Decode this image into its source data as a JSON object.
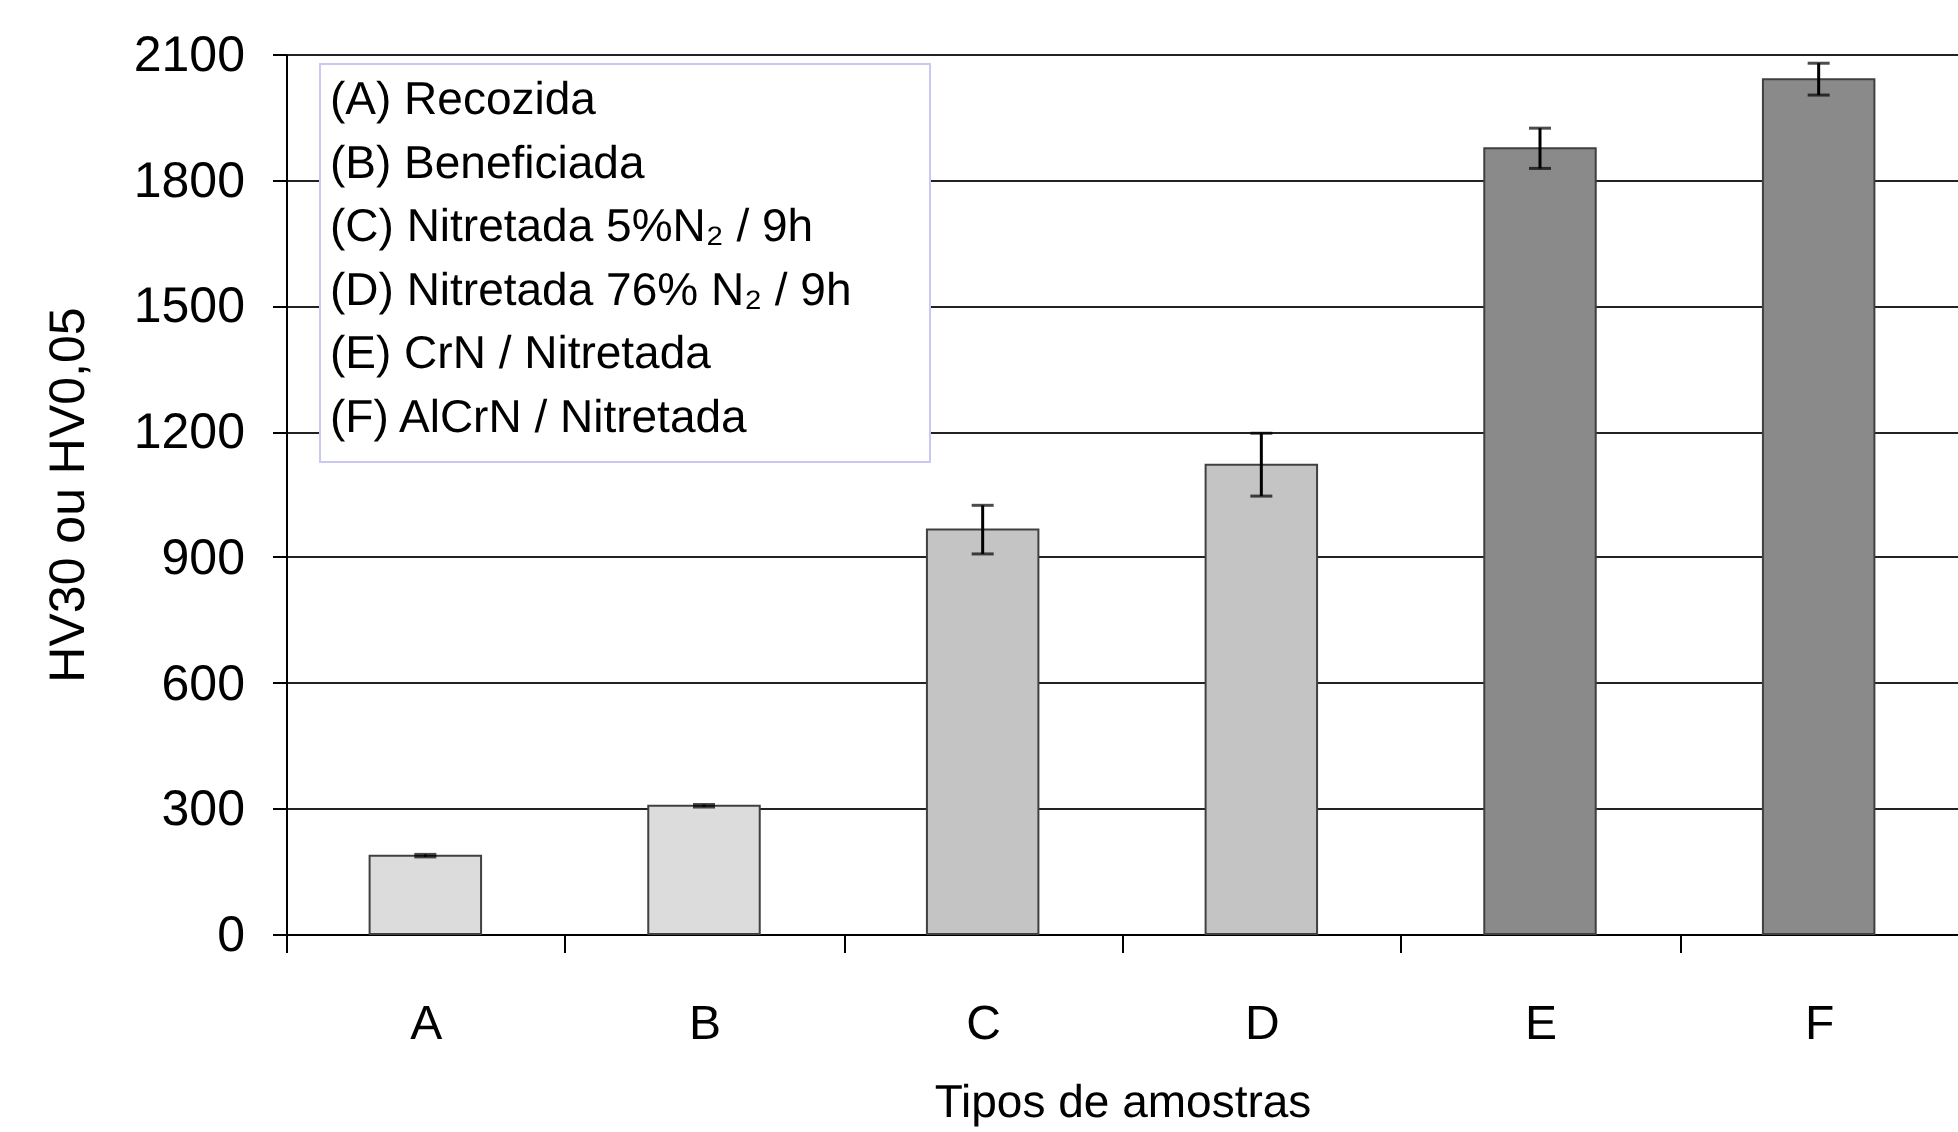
{
  "chart_data": {
    "type": "bar",
    "categories": [
      "A",
      "B",
      "C",
      "D",
      "E",
      "F"
    ],
    "values": [
      187,
      306,
      965,
      1120,
      1875,
      2040
    ],
    "errors": [
      3,
      3,
      58,
      75,
      48,
      38
    ],
    "colors": [
      "#dcdcdc",
      "#dcdcdc",
      "#c4c4c4",
      "#c4c4c4",
      "#8a8a8a",
      "#8a8a8a"
    ],
    "xlabel": "Tipos de amostras",
    "ylabel": "HV30 ou HV0,05",
    "ylim": [
      0,
      2100
    ],
    "yticks": [
      0,
      300,
      600,
      900,
      1200,
      1500,
      1800,
      2100
    ],
    "grid": "y",
    "annotations": [
      "(A) Recozida",
      "(B) Beneficiada",
      "(C) Nitretada 5%N₂ / 9h",
      "(D) Nitretada 76% N₂ / 9h",
      "(E) CrN / Nitretada",
      "(F) AlCrN / Nitretada"
    ]
  }
}
